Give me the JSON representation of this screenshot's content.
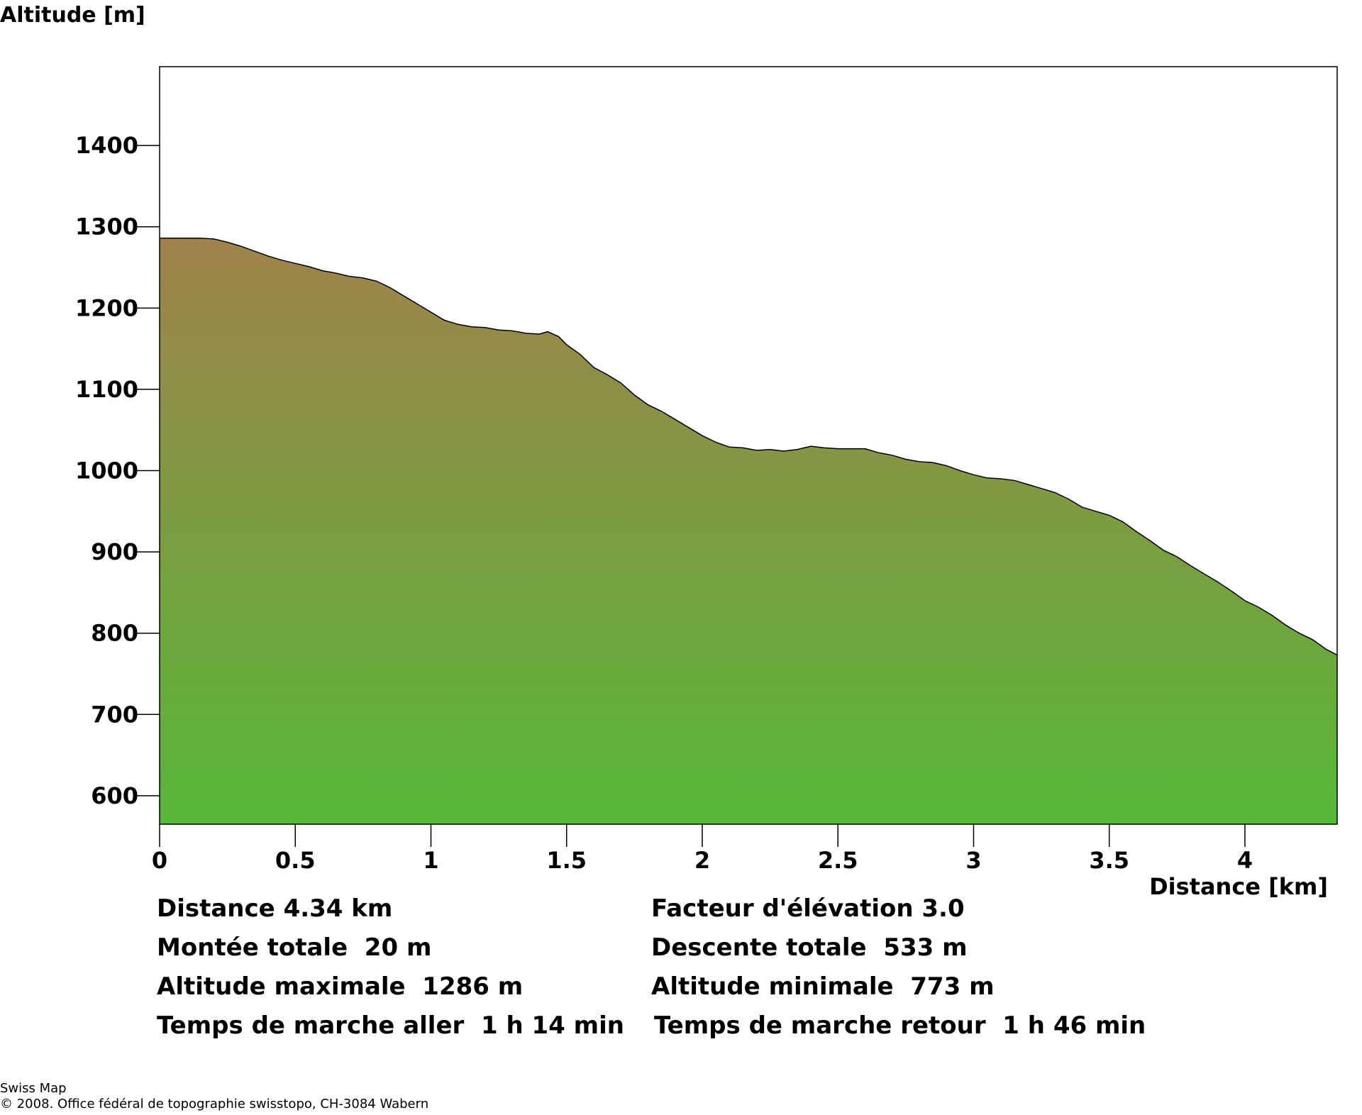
{
  "chart_data": {
    "type": "area",
    "ylabel": "Altitude [m]",
    "xlabel": "Distance [km]",
    "xlim": [
      0,
      4.34
    ],
    "ylim": [
      565,
      1497
    ],
    "x_ticks": [
      0,
      0.5,
      1,
      1.5,
      2,
      2.5,
      3,
      3.5,
      4
    ],
    "x_tick_labels": [
      "0",
      "0.5",
      "1",
      "1.5",
      "2",
      "2.5",
      "3",
      "3.5",
      "4"
    ],
    "y_ticks": [
      600,
      700,
      800,
      900,
      1000,
      1100,
      1200,
      1300,
      1400
    ],
    "y_tick_labels": [
      "600",
      "700",
      "800",
      "900",
      "1000",
      "1100",
      "1200",
      "1300",
      "1400"
    ],
    "grid": false,
    "fill_colors": {
      "top": "#a0824a",
      "bottom": "#56b838"
    },
    "series": [
      {
        "x": [
          0,
          0.05,
          0.1,
          0.15,
          0.2,
          0.25,
          0.3,
          0.35,
          0.4,
          0.45,
          0.5,
          0.55,
          0.6,
          0.65,
          0.7,
          0.75,
          0.8,
          0.85,
          0.9,
          0.95,
          1.0,
          1.05,
          1.1,
          1.15,
          1.2,
          1.25,
          1.3,
          1.35,
          1.4,
          1.43,
          1.47,
          1.5,
          1.55,
          1.6,
          1.65,
          1.7,
          1.75,
          1.8,
          1.85,
          1.9,
          1.95,
          2.0,
          2.05,
          2.1,
          2.15,
          2.2,
          2.25,
          2.3,
          2.35,
          2.4,
          2.45,
          2.5,
          2.55,
          2.6,
          2.65,
          2.7,
          2.75,
          2.8,
          2.85,
          2.9,
          2.95,
          3.0,
          3.05,
          3.1,
          3.15,
          3.2,
          3.25,
          3.3,
          3.35,
          3.4,
          3.45,
          3.5,
          3.55,
          3.6,
          3.65,
          3.7,
          3.75,
          3.8,
          3.85,
          3.9,
          3.95,
          4.0,
          4.05,
          4.1,
          4.15,
          4.2,
          4.25,
          4.3,
          4.34
        ],
        "y": [
          1286,
          1286,
          1286,
          1286,
          1285,
          1281,
          1276,
          1270,
          1264,
          1259,
          1255,
          1251,
          1246,
          1243,
          1239,
          1237,
          1233,
          1225,
          1215,
          1205,
          1195,
          1185,
          1180,
          1177,
          1176,
          1173,
          1172,
          1169,
          1168,
          1171,
          1165,
          1155,
          1143,
          1127,
          1118,
          1108,
          1093,
          1081,
          1073,
          1063,
          1053,
          1043,
          1035,
          1029,
          1028,
          1025,
          1026,
          1024,
          1026,
          1030,
          1028,
          1027,
          1027,
          1027,
          1022,
          1019,
          1014,
          1011,
          1010,
          1006,
          1000,
          995,
          991,
          990,
          988,
          983,
          978,
          973,
          965,
          955,
          950,
          945,
          937,
          925,
          914,
          902,
          894,
          883,
          873,
          863,
          852,
          840,
          832,
          822,
          810,
          800,
          792,
          780,
          773
        ]
      }
    ]
  },
  "summary": {
    "left": [
      "Distance 4.34 km",
      "Montée totale  20 m",
      "Altitude maximale  1286 m",
      "Temps de marche aller  1 h 14 min"
    ],
    "right": [
      "Facteur d'élévation 3.0",
      "Descente totale  533 m",
      "Altitude minimale  773 m",
      "Temps de marche retour  1 h 46 min"
    ]
  },
  "credits": {
    "line1": "Swiss Map",
    "line2": "© 2008. Office fédéral de topographie swisstopo, CH-3084 Wabern"
  }
}
